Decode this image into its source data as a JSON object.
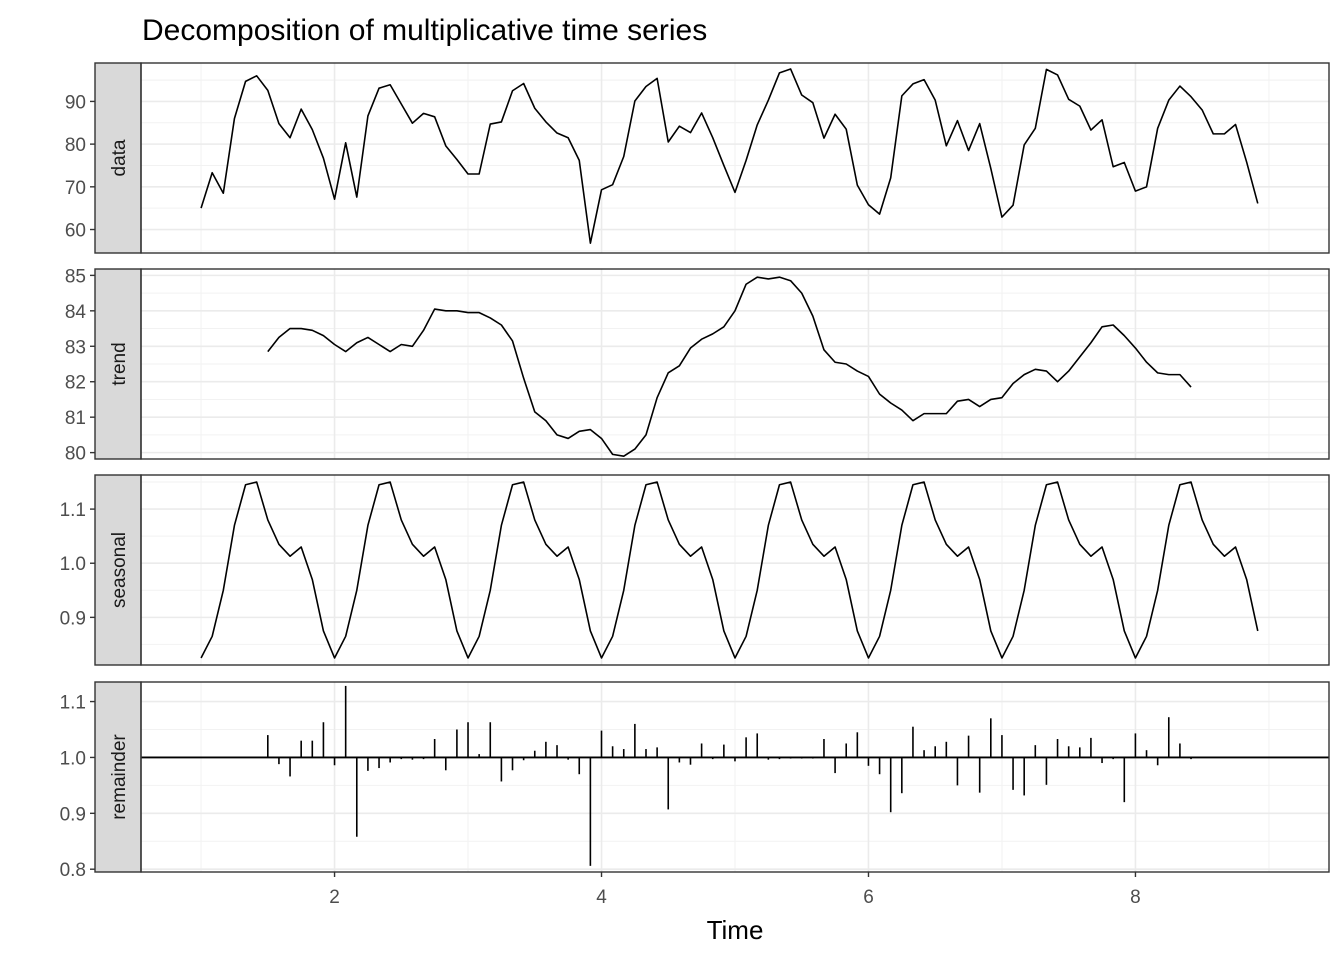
{
  "chart_data": {
    "type": "line",
    "title": "Decomposition of multiplicative time series",
    "xlabel": "Time",
    "x_ticks": [
      2,
      4,
      6,
      8
    ],
    "xlim": [
      0.55,
      9.45
    ],
    "x_start": 1,
    "x_step": 0.08333,
    "grid": true,
    "panels": [
      {
        "name": "data",
        "kind": "line",
        "ylim": [
          54.5,
          99
        ],
        "y_ticks": [
          60,
          70,
          80,
          90
        ],
        "y_tick_labels": [
          "60",
          "70",
          "80",
          "90"
        ],
        "values": [
          65.0,
          73.3,
          68.5,
          86.0,
          94.7,
          96.0,
          92.6,
          84.8,
          81.5,
          88.2,
          83.4,
          76.7,
          67.1,
          80.3,
          67.6,
          86.6,
          93.1,
          93.9,
          89.4,
          84.9,
          87.2,
          86.4,
          79.6,
          76.4,
          73.0,
          73.0,
          84.7,
          85.2,
          92.5,
          94.2,
          88.4,
          85.2,
          82.6,
          81.5,
          76.2,
          56.8,
          69.3,
          70.5,
          77.1,
          90.1,
          93.5,
          95.4,
          80.5,
          84.2,
          82.7,
          87.3,
          81.5,
          75.0,
          68.7,
          76.2,
          84.5,
          90.3,
          96.7,
          97.6,
          91.5,
          89.7,
          81.4,
          87.0,
          83.5,
          70.4,
          65.8,
          63.6,
          72.1,
          91.3,
          94.1,
          95.1,
          90.3,
          79.6,
          85.5,
          78.5,
          84.8,
          74.3,
          62.9,
          65.7,
          79.8,
          83.7,
          97.5,
          96.2,
          90.5,
          88.9,
          83.3,
          85.7,
          74.7,
          75.7,
          69.0,
          70.0,
          83.7,
          90.3,
          93.6,
          91.1,
          88.0,
          82.4,
          82.4,
          84.6,
          75.8,
          66.1
        ]
      },
      {
        "name": "trend",
        "kind": "line",
        "ylim": [
          79.82,
          85.18
        ],
        "y_ticks": [
          80,
          81,
          82,
          83,
          84,
          85
        ],
        "y_tick_labels": [
          "80",
          "81",
          "82",
          "83",
          "84",
          "85"
        ],
        "offset": 6,
        "values": [
          82.85,
          83.25,
          83.5,
          83.5,
          83.45,
          83.3,
          83.05,
          82.85,
          83.1,
          83.25,
          83.05,
          82.85,
          83.05,
          83.0,
          83.45,
          84.05,
          84.0,
          84.0,
          83.95,
          83.95,
          83.8,
          83.6,
          83.15,
          82.1,
          81.15,
          80.9,
          80.5,
          80.4,
          80.6,
          80.65,
          80.4,
          79.95,
          79.9,
          80.1,
          80.5,
          81.55,
          82.25,
          82.45,
          82.95,
          83.2,
          83.35,
          83.55,
          84.0,
          84.75,
          84.95,
          84.9,
          84.95,
          84.85,
          84.5,
          83.85,
          82.9,
          82.55,
          82.5,
          82.3,
          82.15,
          81.65,
          81.4,
          81.2,
          80.9,
          81.1,
          81.1,
          81.1,
          81.45,
          81.5,
          81.3,
          81.5,
          81.55,
          81.95,
          82.2,
          82.35,
          82.3,
          82.0,
          82.3,
          82.7,
          83.1,
          83.55,
          83.6,
          83.3,
          82.95,
          82.55,
          82.25,
          82.2,
          82.2,
          81.85
        ]
      },
      {
        "name": "seasonal",
        "kind": "line",
        "ylim": [
          0.812,
          1.163
        ],
        "y_ticks": [
          0.9,
          1.0,
          1.1
        ],
        "y_tick_labels": [
          "0.9",
          "1.0",
          "1.1"
        ],
        "values": [
          0.825,
          0.865,
          0.95,
          1.07,
          1.145,
          1.15,
          1.08,
          1.035,
          1.013,
          1.03,
          0.97,
          0.875,
          0.825,
          0.865,
          0.95,
          1.07,
          1.145,
          1.15,
          1.08,
          1.035,
          1.013,
          1.03,
          0.97,
          0.875,
          0.825,
          0.865,
          0.95,
          1.07,
          1.145,
          1.15,
          1.08,
          1.035,
          1.013,
          1.03,
          0.97,
          0.875,
          0.825,
          0.865,
          0.95,
          1.07,
          1.145,
          1.15,
          1.08,
          1.035,
          1.013,
          1.03,
          0.97,
          0.875,
          0.825,
          0.865,
          0.95,
          1.07,
          1.145,
          1.15,
          1.08,
          1.035,
          1.013,
          1.03,
          0.97,
          0.875,
          0.825,
          0.865,
          0.95,
          1.07,
          1.145,
          1.15,
          1.08,
          1.035,
          1.013,
          1.03,
          0.97,
          0.875,
          0.825,
          0.865,
          0.95,
          1.07,
          1.145,
          1.15,
          1.08,
          1.035,
          1.013,
          1.03,
          0.97,
          0.875,
          0.825,
          0.865,
          0.95,
          1.07,
          1.145,
          1.15,
          1.08,
          1.035,
          1.013,
          1.03,
          0.97,
          0.875
        ]
      },
      {
        "name": "remainder",
        "kind": "bars",
        "baseline": 1.0,
        "ylim": [
          0.795,
          1.135
        ],
        "y_ticks": [
          0.8,
          0.9,
          1.0,
          1.1
        ],
        "y_tick_labels": [
          "0.8",
          "0.9",
          "1.0",
          "1.1"
        ],
        "offset": 6,
        "values": [
          1.04,
          0.988,
          0.966,
          1.03,
          1.03,
          1.063,
          0.986,
          1.128,
          0.858,
          0.976,
          0.981,
          0.991,
          0.997,
          0.996,
          0.997,
          1.033,
          0.977,
          1.05,
          1.063,
          1.006,
          1.063,
          0.957,
          0.977,
          0.995,
          1.012,
          1.028,
          1.022,
          0.996,
          0.97,
          0.806,
          1.048,
          1.02,
          1.015,
          1.06,
          1.015,
          1.018,
          0.907,
          0.991,
          0.987,
          1.025,
          0.997,
          1.023,
          0.993,
          1.036,
          1.043,
          0.996,
          0.997,
          0.998,
          0.998,
          0.998,
          1.033,
          0.972,
          1.025,
          1.045,
          0.985,
          0.97,
          0.902,
          0.936,
          1.055,
          1.013,
          1.02,
          1.028,
          0.95,
          1.039,
          0.937,
          1.07,
          1.04,
          0.942,
          0.932,
          1.022,
          0.951,
          1.033,
          1.02,
          1.018,
          1.035,
          0.99,
          0.997,
          0.92,
          1.043,
          1.013,
          0.986,
          1.072,
          1.025,
          0.997
        ]
      }
    ]
  }
}
